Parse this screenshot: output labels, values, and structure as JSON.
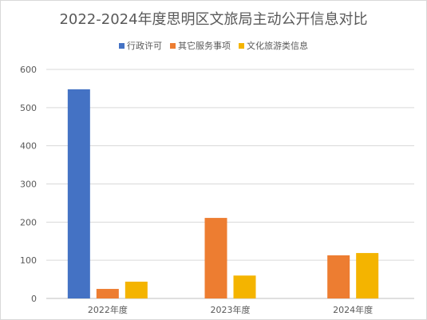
{
  "chart_data": {
    "type": "bar",
    "title": "2022-2024年度思明区文旅局主动公开信息对比",
    "categories": [
      "2022年度",
      "2023年度",
      "2024年度"
    ],
    "series": [
      {
        "name": "行政许可",
        "color": "#4472C4",
        "values": [
          548,
          null,
          null
        ]
      },
      {
        "name": "其它服务事项",
        "color": "#ED7D31",
        "values": [
          25,
          211,
          113
        ]
      },
      {
        "name": "文化旅游类信息",
        "color": "#F4B400",
        "values": [
          44,
          60,
          119
        ]
      }
    ],
    "ylim": [
      0,
      600
    ],
    "yticks": [
      0,
      100,
      200,
      300,
      400,
      500,
      600
    ],
    "grid": true,
    "legend_position": "top"
  }
}
